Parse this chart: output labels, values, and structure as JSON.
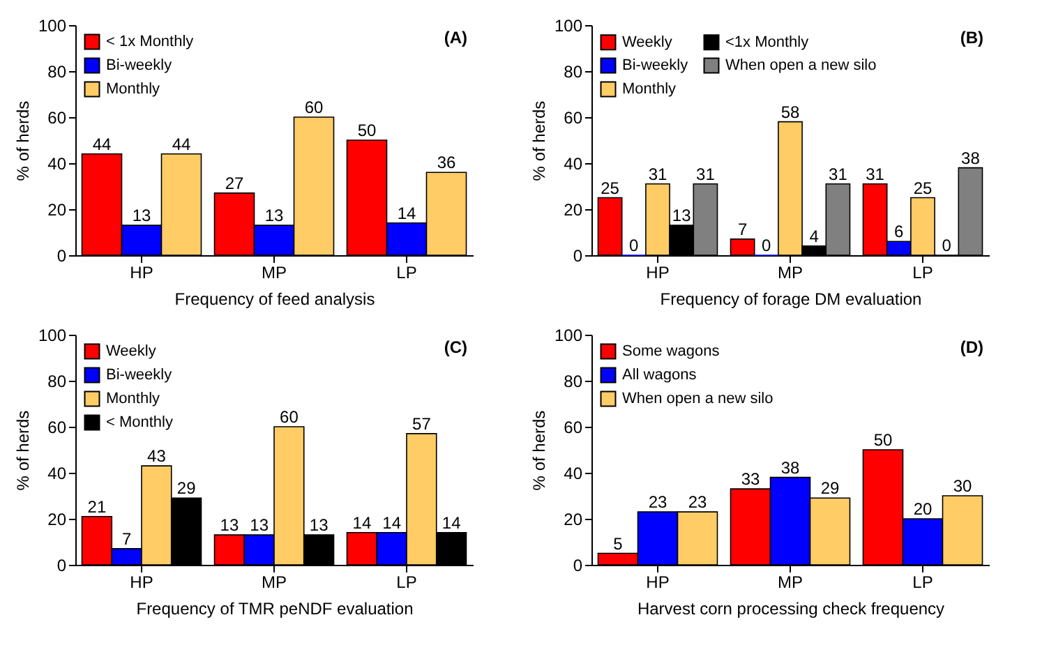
{
  "chart_data": [
    {
      "type": "bar",
      "annotations": [
        "(A)"
      ],
      "xlabel": "Frequency of feed analysis",
      "ylabel": "% of herds",
      "categories": [
        "HP",
        "MP",
        "LP"
      ],
      "ylim": [
        0,
        100
      ],
      "yticks": [
        0,
        20,
        40,
        60,
        80,
        100
      ],
      "legend": "top left",
      "data_labels": true,
      "series": [
        {
          "name": "< 1x Monthly",
          "color": "#ff0000",
          "values": [
            44,
            27,
            50
          ]
        },
        {
          "name": "Bi-weekly",
          "color": "#0000ff",
          "values": [
            13,
            13,
            14
          ]
        },
        {
          "name": "Monthly",
          "color": "#ffcc66",
          "values": [
            44,
            60,
            36
          ]
        }
      ]
    },
    {
      "type": "bar",
      "annotations": [
        "(B)"
      ],
      "xlabel": "Frequency of forage DM evaluation",
      "ylabel": "% of herds",
      "categories": [
        "HP",
        "MP",
        "LP"
      ],
      "ylim": [
        0,
        100
      ],
      "yticks": [
        0,
        20,
        40,
        60,
        80,
        100
      ],
      "legend": "top left",
      "data_labels": true,
      "series": [
        {
          "name": "Weekly",
          "color": "#ff0000",
          "values": [
            25,
            7,
            31
          ]
        },
        {
          "name": "Bi-weekly",
          "color": "#0000ff",
          "values": [
            0,
            0,
            6
          ]
        },
        {
          "name": "Monthly",
          "color": "#ffcc66",
          "values": [
            31,
            58,
            25
          ]
        },
        {
          "name": "<1x Monthly",
          "color": "#000000",
          "values": [
            13,
            4,
            0
          ]
        },
        {
          "name": "When open a new silo",
          "color": "#808080",
          "values": [
            31,
            31,
            38
          ]
        }
      ]
    },
    {
      "type": "bar",
      "annotations": [
        "(C)"
      ],
      "xlabel": "Frequency of TMR peNDF evaluation",
      "ylabel": "% of herds",
      "categories": [
        "HP",
        "MP",
        "LP"
      ],
      "ylim": [
        0,
        100
      ],
      "yticks": [
        0,
        20,
        40,
        60,
        80,
        100
      ],
      "legend": "top left",
      "data_labels": true,
      "series": [
        {
          "name": "Weekly",
          "color": "#ff0000",
          "values": [
            21,
            13,
            14
          ]
        },
        {
          "name": "Bi-weekly",
          "color": "#0000ff",
          "values": [
            7,
            13,
            14
          ]
        },
        {
          "name": "Monthly",
          "color": "#ffcc66",
          "values": [
            43,
            60,
            57
          ]
        },
        {
          "name": "< Monthly",
          "color": "#000000",
          "values": [
            29,
            13,
            14
          ]
        }
      ]
    },
    {
      "type": "bar",
      "annotations": [
        "(D)"
      ],
      "xlabel": "Harvest corn processing check frequency",
      "ylabel": "% of herds",
      "categories": [
        "HP",
        "MP",
        "LP"
      ],
      "ylim": [
        0,
        100
      ],
      "yticks": [
        0,
        20,
        40,
        60,
        80,
        100
      ],
      "legend": "top left",
      "data_labels": true,
      "series": [
        {
          "name": "Some wagons",
          "color": "#ff0000",
          "values": [
            5,
            33,
            50
          ]
        },
        {
          "name": "All wagons",
          "color": "#0000ff",
          "values": [
            23,
            38,
            20
          ]
        },
        {
          "name": "When open a new silo",
          "color": "#ffcc66",
          "values": [
            23,
            29,
            30
          ]
        }
      ]
    }
  ]
}
